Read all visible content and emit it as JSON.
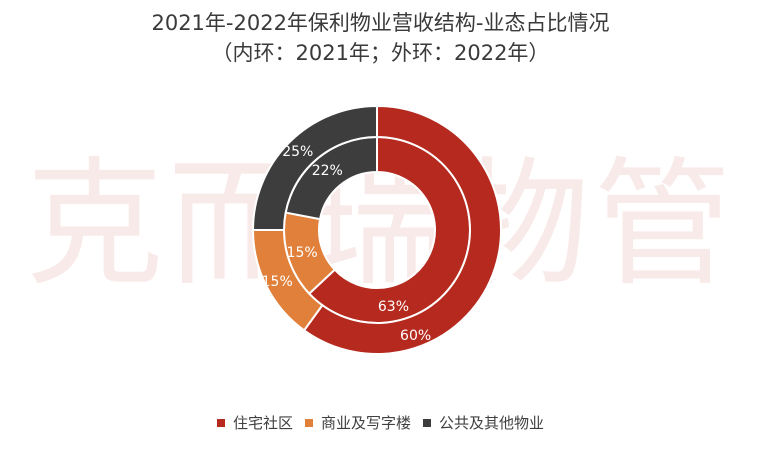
{
  "watermark": "克而瑞物管",
  "chart_data": {
    "type": "pie",
    "title": "2021年-2022年保利物业营收结构-业态占比情况",
    "subtitle": "（内环：2021年；外环：2022年）",
    "categories": [
      "住宅社区",
      "商业及写字楼",
      "公共及其他物业"
    ],
    "colors": [
      "#b5291e",
      "#e0803a",
      "#3d3d3d"
    ],
    "series": [
      {
        "values": [
          63,
          15,
          22
        ],
        "labels": [
          "63%",
          "15%",
          "22%"
        ]
      },
      {
        "values": [
          60,
          15,
          25
        ],
        "labels": [
          "60%",
          "15%",
          "25%"
        ]
      }
    ],
    "legend": "bottom"
  }
}
